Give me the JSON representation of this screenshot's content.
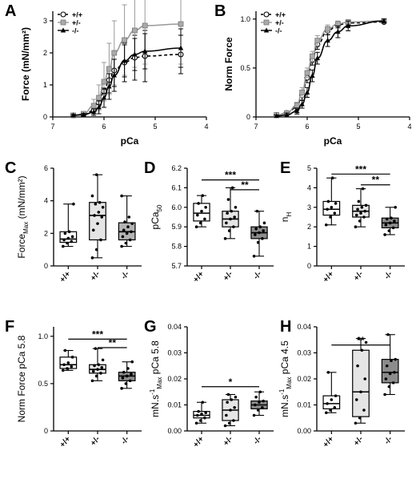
{
  "figure": {
    "panels": [
      "A",
      "B",
      "C",
      "D",
      "E",
      "F",
      "G",
      "H"
    ]
  },
  "chart_data": [
    {
      "panel": "A",
      "type": "line",
      "xlabel": "pCa",
      "ylabel": "Force (mN/mm²)",
      "xlim": [
        7,
        4
      ],
      "ylim": [
        0,
        3.3
      ],
      "xticks": [
        "7",
        "6",
        "5",
        "4"
      ],
      "yticks": [
        "0",
        "1",
        "2",
        "3"
      ],
      "legend": {
        "position": "top-left",
        "entries": [
          "+/+",
          "+/-",
          "-/-"
        ]
      },
      "x": [
        6.6,
        6.4,
        6.2,
        6.1,
        6.0,
        5.9,
        5.8,
        5.6,
        5.4,
        5.2,
        4.5
      ],
      "series": [
        {
          "name": "+/+",
          "marker": "circle-open",
          "line": "dashed",
          "values": [
            0.05,
            0.08,
            0.2,
            0.45,
            0.8,
            1.15,
            1.45,
            1.7,
            1.85,
            1.9,
            1.95
          ],
          "err": [
            0.03,
            0.04,
            0.1,
            0.2,
            0.3,
            0.4,
            0.5,
            0.6,
            0.7,
            0.8,
            0.6
          ]
        },
        {
          "name": "+/-",
          "marker": "square-filled",
          "color": "#999999",
          "line": "solid",
          "values": [
            0.05,
            0.1,
            0.35,
            0.6,
            1.1,
            1.5,
            2.0,
            2.4,
            2.7,
            2.85,
            2.9
          ],
          "err": [
            0.03,
            0.05,
            0.2,
            0.4,
            0.6,
            0.8,
            1.0,
            1.1,
            1.15,
            1.2,
            1.25
          ]
        },
        {
          "name": "-/-",
          "marker": "triangle-filled",
          "line": "solid",
          "values": [
            0.05,
            0.07,
            0.15,
            0.3,
            0.6,
            0.95,
            1.3,
            1.75,
            1.95,
            2.05,
            2.15
          ],
          "err": [
            0.03,
            0.04,
            0.1,
            0.2,
            0.3,
            0.4,
            0.5,
            0.5,
            0.5,
            0.55,
            0.6
          ]
        }
      ]
    },
    {
      "panel": "B",
      "type": "line",
      "xlabel": "pCa",
      "ylabel": "Norm Force",
      "xlim": [
        7,
        4
      ],
      "ylim": [
        0,
        1.08
      ],
      "xticks": [
        "7",
        "6",
        "5",
        "4"
      ],
      "yticks": [
        "0",
        "0.5",
        "1.0"
      ],
      "legend": {
        "position": "top-left",
        "entries": [
          "+/+",
          "+/-",
          "-/-"
        ]
      },
      "x": [
        6.6,
        6.4,
        6.2,
        6.1,
        6.0,
        5.9,
        5.8,
        5.6,
        5.4,
        5.2,
        4.5
      ],
      "series": [
        {
          "name": "+/+",
          "marker": "circle-open",
          "line": "dashed",
          "values": [
            0.02,
            0.04,
            0.1,
            0.22,
            0.4,
            0.58,
            0.74,
            0.88,
            0.94,
            0.96,
            0.97
          ],
          "err": [
            0.01,
            0.02,
            0.03,
            0.05,
            0.05,
            0.05,
            0.05,
            0.04,
            0.03,
            0.02,
            0.01
          ]
        },
        {
          "name": "+/-",
          "marker": "square-filled",
          "color": "#999999",
          "line": "solid",
          "values": [
            0.02,
            0.04,
            0.12,
            0.25,
            0.45,
            0.62,
            0.78,
            0.9,
            0.95,
            0.97,
            0.98
          ],
          "err": [
            0.01,
            0.02,
            0.03,
            0.05,
            0.05,
            0.05,
            0.05,
            0.04,
            0.03,
            0.02,
            0.01
          ]
        },
        {
          "name": "-/-",
          "marker": "triangle-filled",
          "line": "solid",
          "values": [
            0.01,
            0.02,
            0.06,
            0.13,
            0.25,
            0.42,
            0.6,
            0.78,
            0.87,
            0.93,
            0.98
          ],
          "err": [
            0.01,
            0.02,
            0.03,
            0.04,
            0.05,
            0.06,
            0.06,
            0.06,
            0.06,
            0.05,
            0.02
          ]
        }
      ]
    },
    {
      "panel": "C",
      "type": "box",
      "ylabel": "Force",
      "ylabel_sub": "Max",
      "ylabel_suffix": " (mN/mm²)",
      "categories": [
        "+/+",
        "+/-",
        "-/-"
      ],
      "ylim": [
        0,
        6
      ],
      "yticks": [
        "0",
        "2",
        "4",
        "6"
      ],
      "boxes": [
        {
          "name": "+/+",
          "min": 1.2,
          "q1": 1.45,
          "median": 1.65,
          "q3": 2.1,
          "max": 3.8,
          "fill": "#ffffff",
          "points": [
            1.2,
            1.4,
            1.5,
            1.6,
            1.7,
            1.8,
            2.0,
            2.1,
            3.8
          ]
        },
        {
          "name": "+/-",
          "min": 0.5,
          "q1": 1.6,
          "median": 3.1,
          "q3": 3.9,
          "max": 5.6,
          "fill": "#e5e5e5",
          "points": [
            0.5,
            1.0,
            1.6,
            2.2,
            2.6,
            3.0,
            3.1,
            3.3,
            3.6,
            3.8,
            3.9,
            4.3,
            5.6
          ]
        },
        {
          "name": "-/-",
          "min": 1.2,
          "q1": 1.6,
          "median": 2.1,
          "q3": 2.65,
          "max": 4.3,
          "fill": "#b3b3b3",
          "points": [
            1.2,
            1.4,
            1.6,
            1.8,
            2.0,
            2.1,
            2.2,
            2.4,
            2.6,
            2.7,
            3.0,
            4.3
          ]
        }
      ],
      "significance": []
    },
    {
      "panel": "D",
      "type": "box",
      "ylabel": "pCa",
      "ylabel_sub": "50",
      "ylabel_suffix": "",
      "categories": [
        "+/+",
        "+/-",
        "-/-"
      ],
      "ylim": [
        5.7,
        6.2
      ],
      "yticks": [
        "5.7",
        "5.8",
        "5.9",
        "6.0",
        "6.1",
        "6.2"
      ],
      "boxes": [
        {
          "name": "+/+",
          "min": 5.9,
          "q1": 5.93,
          "median": 5.97,
          "q3": 6.02,
          "max": 6.06,
          "fill": "#ffffff",
          "points": [
            5.9,
            5.92,
            5.94,
            5.96,
            5.98,
            6.0,
            6.02,
            6.06
          ]
        },
        {
          "name": "+/-",
          "min": 5.84,
          "q1": 5.9,
          "median": 5.94,
          "q3": 5.98,
          "max": 6.1,
          "fill": "#e5e5e5",
          "points": [
            5.84,
            5.88,
            5.9,
            5.92,
            5.94,
            5.95,
            5.97,
            5.98,
            6.0,
            6.04,
            6.1
          ]
        },
        {
          "name": "-/-",
          "min": 5.75,
          "q1": 5.84,
          "median": 5.87,
          "q3": 5.9,
          "max": 5.98,
          "fill": "#8c8c8c",
          "points": [
            5.75,
            5.82,
            5.84,
            5.86,
            5.87,
            5.88,
            5.89,
            5.9,
            5.92,
            5.98
          ]
        }
      ],
      "significance": [
        {
          "from": 0,
          "to": 2,
          "label": "***",
          "y": 6.14
        },
        {
          "from": 1,
          "to": 2,
          "label": "**",
          "y": 6.09
        }
      ]
    },
    {
      "panel": "E",
      "type": "box",
      "ylabel": "n",
      "ylabel_sub": "H",
      "ylabel_suffix": "",
      "categories": [
        "+/+",
        "+/-",
        "-/-"
      ],
      "ylim": [
        0,
        5
      ],
      "yticks": [
        "0",
        "1",
        "2",
        "3",
        "4",
        "5"
      ],
      "boxes": [
        {
          "name": "+/+",
          "min": 2.1,
          "q1": 2.6,
          "median": 2.9,
          "q3": 3.3,
          "max": 4.5,
          "fill": "#ffffff",
          "points": [
            2.1,
            2.5,
            2.7,
            2.9,
            3.0,
            3.2,
            3.3,
            4.5
          ]
        },
        {
          "name": "+/-",
          "min": 2.0,
          "q1": 2.5,
          "median": 2.8,
          "q3": 3.1,
          "max": 3.95,
          "fill": "#e5e5e5",
          "points": [
            2.0,
            2.3,
            2.5,
            2.6,
            2.7,
            2.8,
            2.9,
            3.0,
            3.1,
            3.3,
            3.95
          ]
        },
        {
          "name": "-/-",
          "min": 1.6,
          "q1": 1.95,
          "median": 2.2,
          "q3": 2.45,
          "max": 3.0,
          "fill": "#8c8c8c",
          "points": [
            1.6,
            1.8,
            1.95,
            2.1,
            2.2,
            2.3,
            2.4,
            2.45,
            3.0
          ]
        }
      ],
      "significance": [
        {
          "from": 0,
          "to": 2,
          "label": "***",
          "y": 4.7
        },
        {
          "from": 1,
          "to": 2,
          "label": "**",
          "y": 4.15
        }
      ]
    },
    {
      "panel": "F",
      "type": "box",
      "ylabel": "Norm Force pCa 5.8",
      "ylabel_sub": "",
      "ylabel_suffix": "",
      "categories": [
        "+/+",
        "+/-",
        "-/-"
      ],
      "ylim": [
        0,
        1.1
      ],
      "yticks": [
        "0",
        "0.5",
        "1.0"
      ],
      "boxes": [
        {
          "name": "+/+",
          "min": 0.64,
          "q1": 0.66,
          "median": 0.7,
          "q3": 0.78,
          "max": 0.85,
          "fill": "#ffffff",
          "points": [
            0.64,
            0.66,
            0.68,
            0.7,
            0.72,
            0.78,
            0.85
          ]
        },
        {
          "name": "+/-",
          "min": 0.53,
          "q1": 0.61,
          "median": 0.65,
          "q3": 0.7,
          "max": 0.87,
          "fill": "#e5e5e5",
          "points": [
            0.53,
            0.58,
            0.61,
            0.63,
            0.65,
            0.67,
            0.69,
            0.7,
            0.75,
            0.87
          ]
        },
        {
          "name": "-/-",
          "min": 0.45,
          "q1": 0.53,
          "median": 0.58,
          "q3": 0.62,
          "max": 0.73,
          "fill": "#8c8c8c",
          "points": [
            0.45,
            0.5,
            0.53,
            0.56,
            0.58,
            0.6,
            0.62,
            0.66,
            0.73
          ]
        }
      ],
      "significance": [
        {
          "from": 0,
          "to": 2,
          "label": "***",
          "y": 0.97
        },
        {
          "from": 1,
          "to": 2,
          "label": "**",
          "y": 0.88
        }
      ]
    },
    {
      "panel": "G",
      "type": "box",
      "ylabel": "mN.s",
      "ylabel_sup": "-1",
      "ylabel_sub": "Max",
      "ylabel_suffix": " pCa 5.8",
      "categories": [
        "+/+",
        "+/-",
        "-/-"
      ],
      "ylim": [
        0,
        0.04
      ],
      "yticks": [
        "0.00",
        "0.01",
        "0.02",
        "0.03",
        "0.04"
      ],
      "boxes": [
        {
          "name": "+/+",
          "min": 0.003,
          "q1": 0.005,
          "median": 0.006,
          "q3": 0.0075,
          "max": 0.011,
          "fill": "#ffffff",
          "points": [
            0.003,
            0.004,
            0.005,
            0.006,
            0.0065,
            0.007,
            0.0075,
            0.011
          ]
        },
        {
          "name": "+/-",
          "min": 0.002,
          "q1": 0.004,
          "median": 0.008,
          "q3": 0.012,
          "max": 0.014,
          "fill": "#e5e5e5",
          "points": [
            0.002,
            0.003,
            0.004,
            0.006,
            0.008,
            0.009,
            0.011,
            0.012,
            0.013,
            0.014
          ]
        },
        {
          "name": "-/-",
          "min": 0.006,
          "q1": 0.0085,
          "median": 0.01,
          "q3": 0.0115,
          "max": 0.015,
          "fill": "#8c8c8c",
          "points": [
            0.006,
            0.008,
            0.009,
            0.01,
            0.011,
            0.0115,
            0.013,
            0.015
          ]
        }
      ],
      "significance": [
        {
          "from": 0,
          "to": 2,
          "label": "*",
          "y": 0.017
        }
      ]
    },
    {
      "panel": "H",
      "type": "box",
      "ylabel": "mN.s",
      "ylabel_sup": "-1",
      "ylabel_sub": "Max",
      "ylabel_suffix": " pCa 4.5",
      "categories": [
        "+/+",
        "+/-",
        "-/-"
      ],
      "ylim": [
        0,
        0.04
      ],
      "yticks": [
        "0.00",
        "0.01",
        "0.02",
        "0.03",
        "0.04"
      ],
      "boxes": [
        {
          "name": "+/+",
          "min": 0.007,
          "q1": 0.0085,
          "median": 0.0105,
          "q3": 0.0135,
          "max": 0.0225,
          "fill": "#ffffff",
          "points": [
            0.007,
            0.008,
            0.009,
            0.0105,
            0.012,
            0.0135,
            0.0225
          ]
        },
        {
          "name": "+/-",
          "min": 0.003,
          "q1": 0.0055,
          "median": 0.015,
          "q3": 0.031,
          "max": 0.0355,
          "fill": "#e5e5e5",
          "points": [
            0.003,
            0.005,
            0.008,
            0.012,
            0.015,
            0.02,
            0.025,
            0.031,
            0.034,
            0.0355
          ]
        },
        {
          "name": "-/-",
          "min": 0.014,
          "q1": 0.0185,
          "median": 0.0225,
          "q3": 0.0275,
          "max": 0.037,
          "fill": "#8c8c8c",
          "points": [
            0.014,
            0.017,
            0.0185,
            0.02,
            0.022,
            0.0225,
            0.025,
            0.027,
            0.0275,
            0.037
          ]
        }
      ],
      "significance": [
        {
          "from": 0,
          "to": 2,
          "label": "**",
          "y": 0.033
        }
      ]
    }
  ]
}
